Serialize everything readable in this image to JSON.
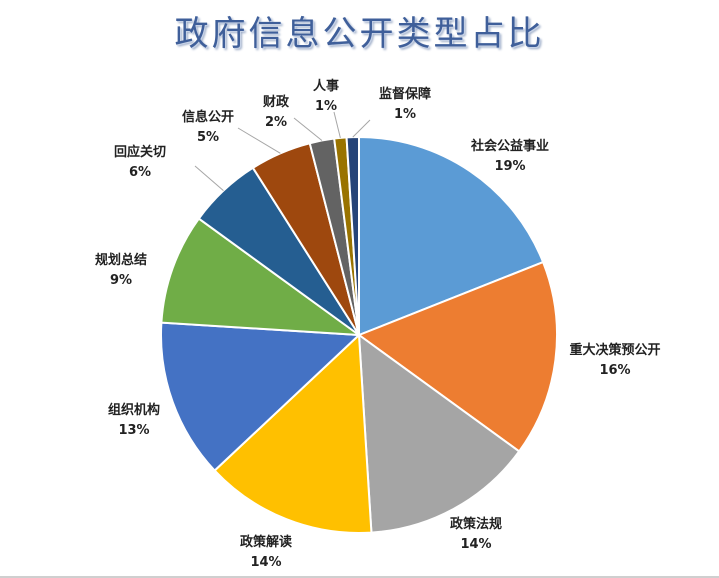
{
  "chart_data": {
    "type": "pie",
    "title": "政府信息公开类型占比",
    "slices": [
      {
        "name": "社会公益事业",
        "value": 19,
        "label": "19%",
        "color": "#5b9bd5"
      },
      {
        "name": "重大决策预公开",
        "value": 16,
        "label": "16%",
        "color": "#ed7d31"
      },
      {
        "name": "政策法规",
        "value": 14,
        "label": "14%",
        "color": "#a5a5a5"
      },
      {
        "name": "政策解读",
        "value": 14,
        "label": "14%",
        "color": "#ffc000"
      },
      {
        "name": "组织机构",
        "value": 13,
        "label": "13%",
        "color": "#4472c4"
      },
      {
        "name": "规划总结",
        "value": 9,
        "label": "9%",
        "color": "#70ad47"
      },
      {
        "name": "回应关切",
        "value": 6,
        "label": "6%",
        "color": "#255e91"
      },
      {
        "name": "信息公开",
        "value": 5,
        "label": "5%",
        "color": "#9e480e"
      },
      {
        "name": "财政",
        "value": 2,
        "label": "2%",
        "color": "#636363"
      },
      {
        "name": "人事",
        "value": 1,
        "label": "1%",
        "color": "#997300"
      },
      {
        "name": "监督保障",
        "value": 1,
        "label": "1%",
        "color": "#264478"
      }
    ],
    "legend": "none",
    "data_labels": "outside-with-leader-lines"
  }
}
